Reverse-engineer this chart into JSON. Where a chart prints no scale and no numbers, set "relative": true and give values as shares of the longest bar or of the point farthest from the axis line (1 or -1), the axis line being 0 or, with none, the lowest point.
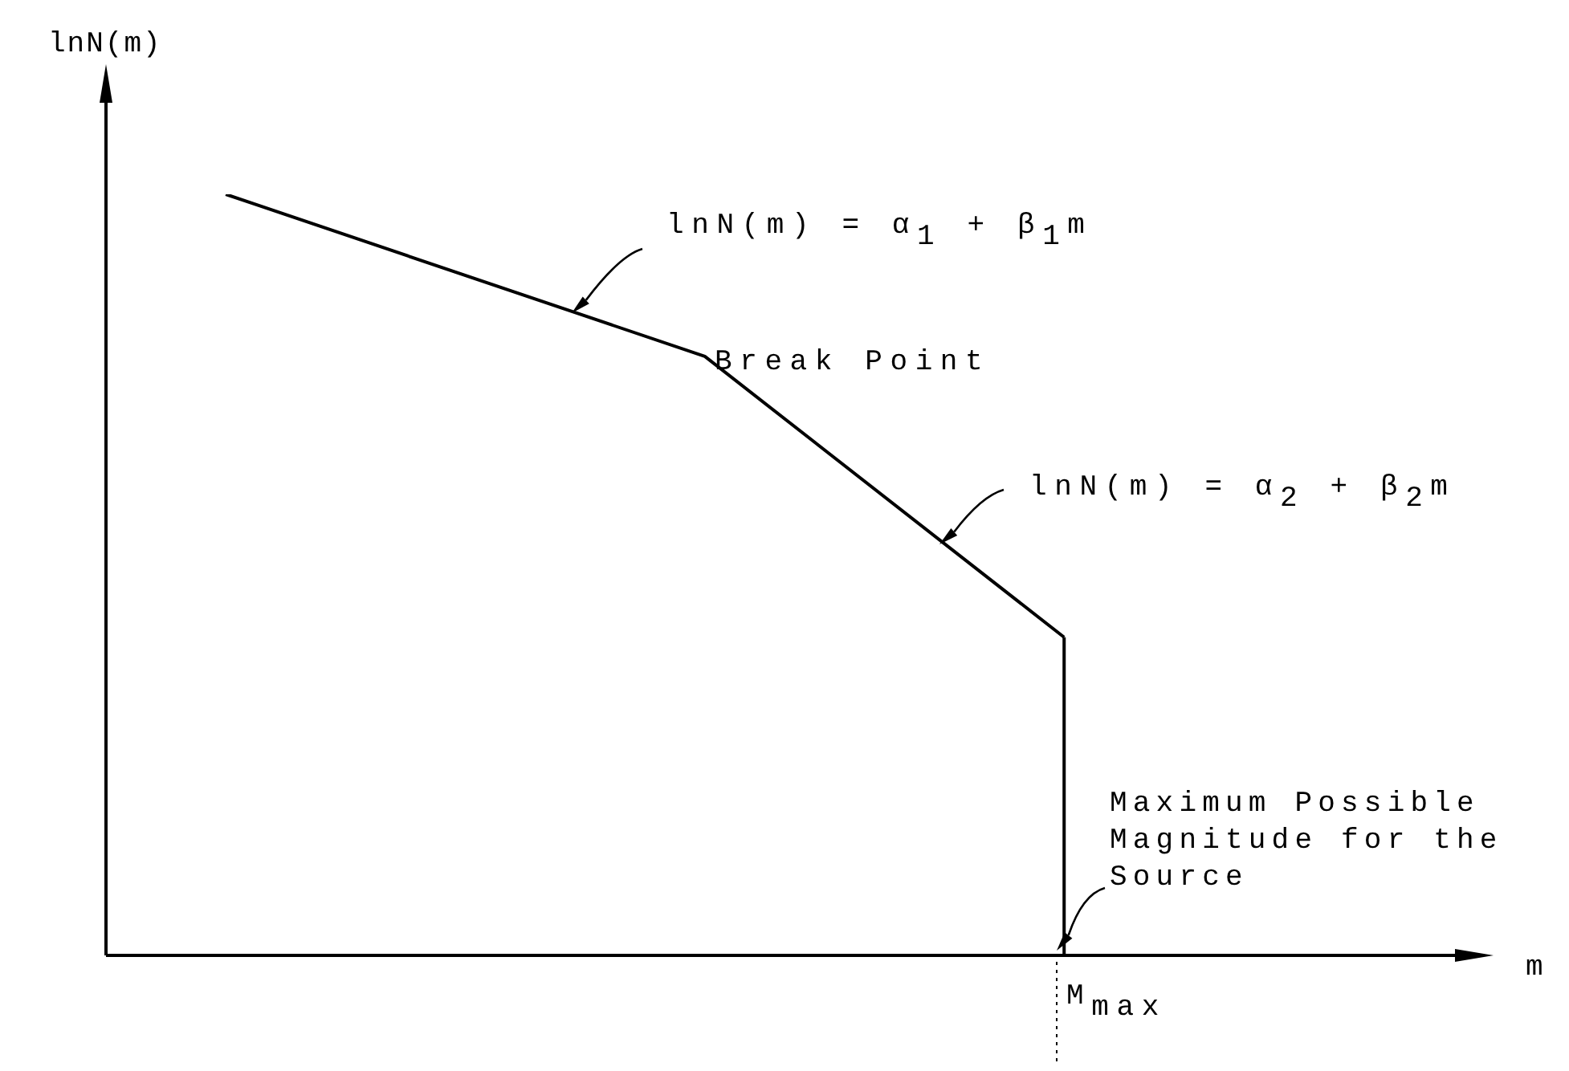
{
  "chart_data": {
    "type": "line",
    "relative": true,
    "xlabel": "m",
    "ylabel": "lnN(m)",
    "line_style": "solid",
    "categories": [
      null,
      null,
      null,
      null,
      null,
      null,
      null,
      null,
      null,
      null,
      null,
      null,
      null,
      null,
      null,
      null,
      null,
      null,
      null,
      null,
      null,
      null,
      null,
      null,
      null,
      null,
      null,
      null,
      null,
      null,
      null,
      null,
      null,
      null,
      null,
      null,
      null,
      null,
      null,
      null,
      null,
      null,
      null,
      null,
      null,
      null
    ],
    "series": [
      {
        "color": "#000000",
        "values": [
          null,
          null,
          null,
          null,
          1,
          null,
          null,
          null,
          null,
          null,
          null,
          null,
          null,
          null,
          null,
          null,
          null,
          null,
          null,
          null,
          0.787,
          null,
          null,
          null,
          null,
          null,
          null,
          null,
          null,
          null,
          null,
          null,
          0.418,
          null,
          null,
          null,
          null,
          null,
          null,
          null,
          null,
          null,
          null,
          null,
          null,
          null
        ]
      },
      {
        "type": "step",
        "color": "#000000",
        "values": [
          null,
          null,
          null,
          null,
          null,
          null,
          null,
          null,
          null,
          null,
          null,
          null,
          null,
          null,
          null,
          null,
          null,
          null,
          null,
          null,
          null,
          null,
          null,
          null,
          null,
          null,
          null,
          null,
          null,
          null,
          null,
          null,
          0.418,
          0,
          null,
          null,
          null,
          null,
          null,
          null,
          null,
          null,
          null,
          null,
          null,
          null
        ]
      }
    ],
    "annotations": [
      "M$_{max}$",
      "lnN(m) = α$_{1}$ + β$_{1}$m",
      "Break Point",
      "lnN(m) = α$_{2}$ + β$_{2}$m",
      "Maximum Possible Magnitude for the Source"
    ]
  }
}
